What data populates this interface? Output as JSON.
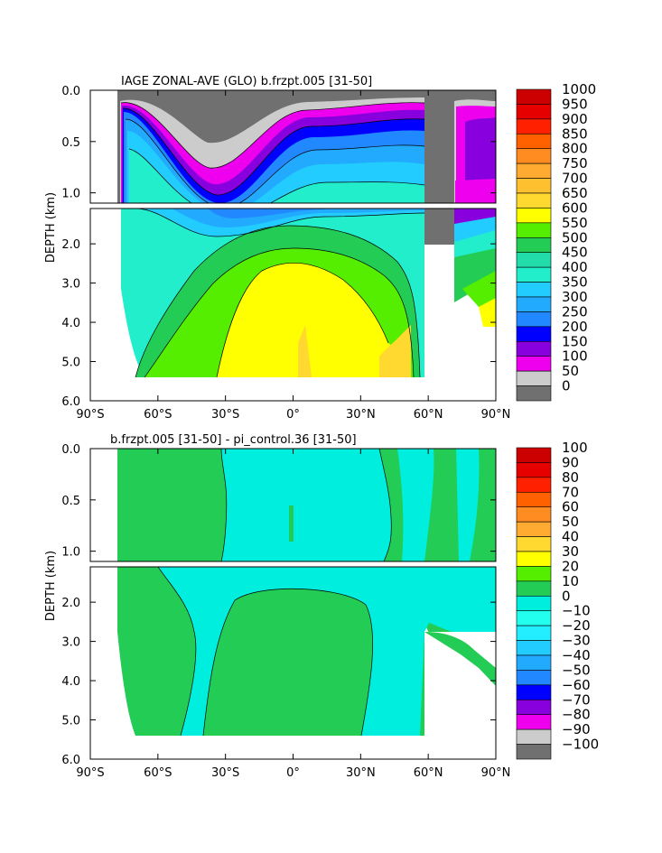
{
  "chart_data": [
    {
      "type": "heatmap",
      "title": "IAGE ZONAL-AVE (GLO) b.frzpt.005 [31-50]",
      "ylabel": "DEPTH (km)",
      "x_ticks": [
        "90°S",
        "60°S",
        "30°S",
        "0°",
        "30°N",
        "60°N",
        "90°N"
      ],
      "y_ticks_upper": [
        "0.0",
        "0.5",
        "1.0"
      ],
      "y_ticks_lower": [
        "2.0",
        "3.0",
        "4.0",
        "5.0",
        "6.0"
      ],
      "xlim": [
        -90,
        90
      ],
      "ylim_upper_km": [
        0,
        1.1
      ],
      "ylim_lower_km": [
        1.1,
        6.0
      ],
      "legend_levels": [
        "1000",
        "950",
        "900",
        "850",
        "800",
        "750",
        "700",
        "650",
        "600",
        "550",
        "500",
        "450",
        "400",
        "350",
        "300",
        "250",
        "200",
        "150",
        "100",
        "50",
        "0"
      ],
      "legend_colors": [
        "#cc0000",
        "#e60000",
        "#ff2000",
        "#ff6000",
        "#ff8c20",
        "#ffaa30",
        "#ffc030",
        "#ffd830",
        "#ffff00",
        "#55ee00",
        "#22cc55",
        "#22ddaa",
        "#22eecc",
        "#22ccff",
        "#22aaff",
        "#2288ff",
        "#0000ff",
        "#8800dd",
        "#ee00ee",
        "#cccccc",
        "#707070"
      ]
    },
    {
      "type": "heatmap",
      "title": "b.frzpt.005 [31-50] - pi_control.36 [31-50]",
      "ylabel": "DEPTH (km)",
      "x_ticks": [
        "90°S",
        "60°S",
        "30°S",
        "0°",
        "30°N",
        "60°N",
        "90°N"
      ],
      "y_ticks_upper": [
        "0.0",
        "0.5",
        "1.0"
      ],
      "y_ticks_lower": [
        "2.0",
        "3.0",
        "4.0",
        "5.0",
        "6.0"
      ],
      "xlim": [
        -90,
        90
      ],
      "ylim_upper_km": [
        0,
        1.1
      ],
      "ylim_lower_km": [
        1.1,
        6.0
      ],
      "legend_levels": [
        "100",
        "90",
        "80",
        "70",
        "60",
        "50",
        "40",
        "30",
        "20",
        "10",
        "0",
        "−10",
        "−20",
        "−30",
        "−40",
        "−50",
        "−60",
        "−70",
        "−80",
        "−90",
        "−100"
      ],
      "legend_colors": [
        "#cc0000",
        "#e60000",
        "#ff2000",
        "#ff6000",
        "#ff8c20",
        "#ffaa30",
        "#ffd830",
        "#ffff00",
        "#55ee00",
        "#22cc55",
        "#00eedd",
        "#22ffee",
        "#22eeff",
        "#22ccff",
        "#22aaff",
        "#2288ff",
        "#0000ff",
        "#8800dd",
        "#ee00ee",
        "#cccccc",
        "#707070"
      ]
    }
  ]
}
